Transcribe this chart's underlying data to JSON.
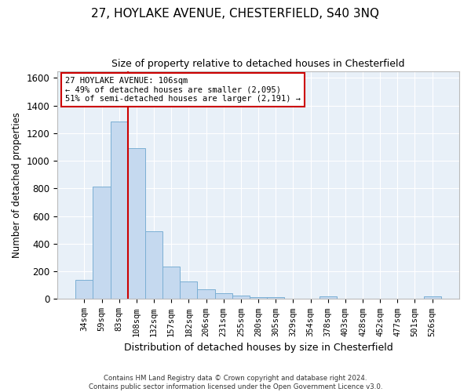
{
  "title": "27, HOYLAKE AVENUE, CHESTERFIELD, S40 3NQ",
  "subtitle": "Size of property relative to detached houses in Chesterfield",
  "xlabel": "Distribution of detached houses by size in Chesterfield",
  "ylabel": "Number of detached properties",
  "bar_color": "#c5d9ef",
  "bar_edge_color": "#7bafd4",
  "background_color": "#e8f0f8",
  "grid_color": "#ffffff",
  "vline_color": "#cc0000",
  "annotation_box_color": "#cc0000",
  "annotation_text": "27 HOYLAKE AVENUE: 106sqm\n← 49% of detached houses are smaller (2,095)\n51% of semi-detached houses are larger (2,191) →",
  "footer": "Contains HM Land Registry data © Crown copyright and database right 2024.\nContains public sector information licensed under the Open Government Licence v3.0.",
  "categories": [
    "34sqm",
    "59sqm",
    "83sqm",
    "108sqm",
    "132sqm",
    "157sqm",
    "182sqm",
    "206sqm",
    "231sqm",
    "255sqm",
    "280sqm",
    "305sqm",
    "329sqm",
    "354sqm",
    "378sqm",
    "403sqm",
    "428sqm",
    "452sqm",
    "477sqm",
    "501sqm",
    "526sqm"
  ],
  "values": [
    140,
    815,
    1285,
    1090,
    490,
    235,
    130,
    68,
    40,
    27,
    15,
    14,
    0,
    0,
    18,
    0,
    0,
    0,
    0,
    0,
    18
  ],
  "vline_bin": 3,
  "ylim": [
    0,
    1650
  ],
  "yticks": [
    0,
    200,
    400,
    600,
    800,
    1000,
    1200,
    1400,
    1600
  ]
}
